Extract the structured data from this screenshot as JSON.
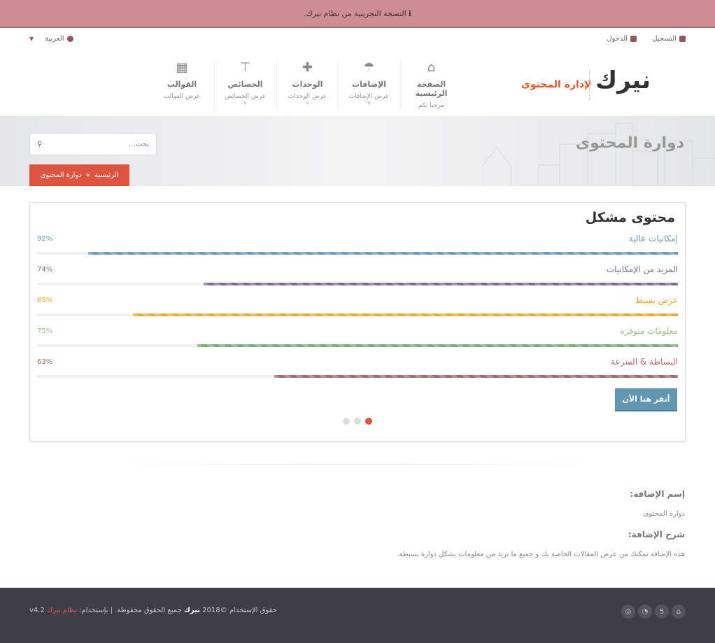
{
  "banner": {
    "icon": "info-icon",
    "text": "النسخة التجريبية من نظام نيرك."
  },
  "topbar": {
    "register": "التسجيل",
    "login": "الدخول",
    "language": "العربية"
  },
  "logo": {
    "brand": "نيرك",
    "tagline": "لإدارة المحتوى",
    "accent": "#e2582c"
  },
  "nav": [
    {
      "title": "الصفحة الرئيسية",
      "sub": "مرحبا بكم",
      "icon": "home-icon"
    },
    {
      "title": "الإضافات",
      "sub": "عرض الإضافات",
      "icon": "umbrella-icon"
    },
    {
      "title": "الوحدات",
      "sub": "عرض الوحدات",
      "icon": "puzzle-icon"
    },
    {
      "title": "الخصائص",
      "sub": "عرض الخصائص",
      "icon": "sitemap-icon"
    },
    {
      "title": "القوالب",
      "sub": "عرض القوالب",
      "icon": "qrcode-icon"
    }
  ],
  "hero": {
    "title": "دوارة المحتوى",
    "search_placeholder": "بحث...",
    "breadcrumb": {
      "home": "الرئيسية",
      "sep": "»",
      "current": "دوارة المحتوى"
    }
  },
  "card": {
    "title": "محتوى مشكل",
    "bars": [
      {
        "label": "إمكانيات عالية",
        "percent": "92%",
        "value": 92,
        "color": "#6a9bb5"
      },
      {
        "label": "المزيد من الإمكانيات",
        "percent": "74%",
        "value": 74,
        "color": "#7f6b92"
      },
      {
        "label": "عرض بسيط",
        "percent": "85%",
        "value": 85,
        "color": "#e5ad2d"
      },
      {
        "label": "معلومات متوفرة",
        "percent": "75%",
        "value": 75,
        "color": "#77ad78"
      },
      {
        "label": "البساطة & السرعة",
        "percent": "63%",
        "value": 63,
        "color": "#a56a6a"
      }
    ],
    "label_colors": [
      "#6a9bb5",
      "#7a7080",
      "#e5ad2d",
      "#9dc387",
      "#a56a6a"
    ],
    "cta": "أنقر هنا الأن",
    "active_slide": 1,
    "slides": 3
  },
  "info": {
    "name_label": "إسم الإضافة:",
    "name": "دوارة المحتوى",
    "desc_label": "شرح الإضافة:",
    "desc": "هذه الإضافة تمكنك من عرض المقالات الخاصة بك و جميع ما تريد من معلومات بشكل دوارة بسيطة."
  },
  "footer": {
    "copy_prefix": "حقوق الإستخدام ©2018",
    "brand": "نيرك",
    "copy_mid": "جميع الحقوق محفوظة. | بإستخدام:",
    "system": "نظام نيرك",
    "version": "v4.2",
    "social": [
      "home-icon",
      "html5-icon",
      "rss-icon",
      "dribbble-icon"
    ]
  }
}
